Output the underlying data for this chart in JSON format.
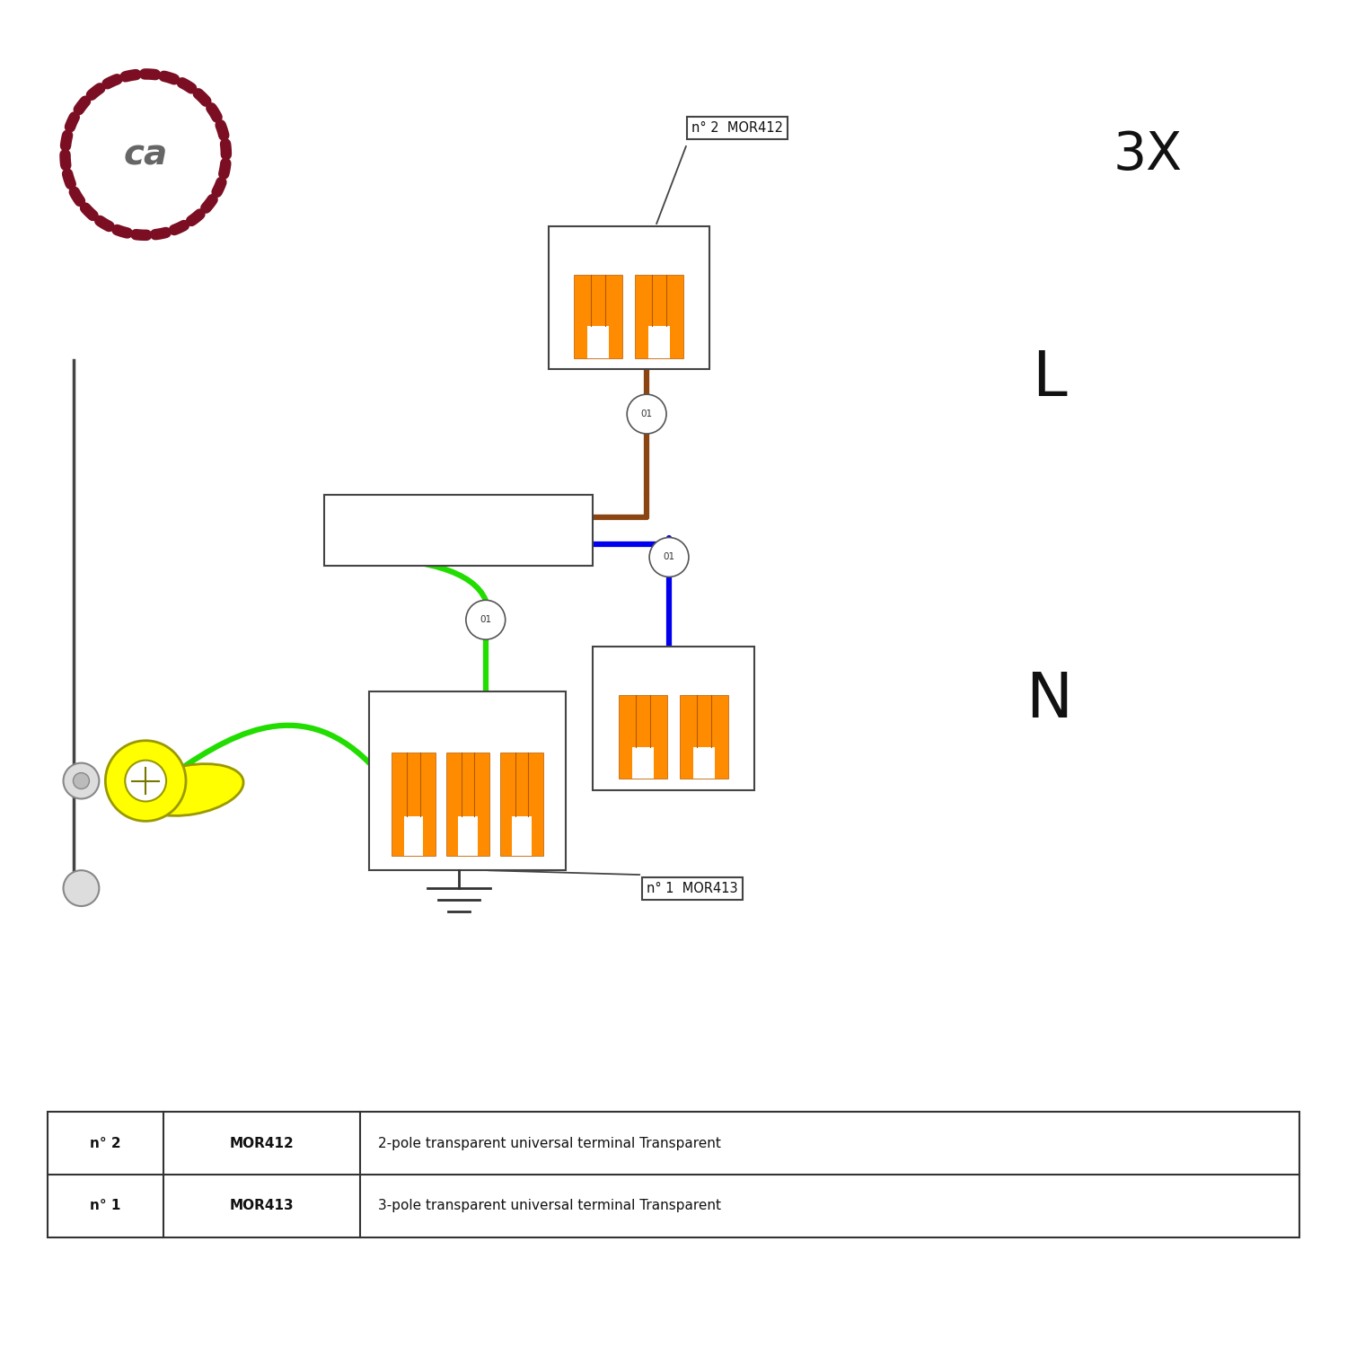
{
  "bg_color": "#ffffff",
  "border_color": "#444444",
  "orange_color": "#FF8C00",
  "dark_orange": "#B35900",
  "brown_wire": "#8B4513",
  "blue_wire": "#0000EE",
  "green_wire": "#22DD00",
  "yellow_wire": "#FFFF00",
  "ca_logo_color": "#7B0E22",
  "title_3x": "3X",
  "label_L": "L",
  "label_N": "N",
  "label_MOR412": "n° 2  MOR412",
  "label_MOR413": "n° 1  MOR413",
  "table_row1_col1": "n° 2",
  "table_row1_col2": "MOR412",
  "table_row1_col3": "2-pole transparent universal terminal Transparent",
  "table_row2_col1": "n° 1",
  "table_row2_col2": "MOR413",
  "table_row2_col3": "3-pole transparent universal terminal Transparent"
}
